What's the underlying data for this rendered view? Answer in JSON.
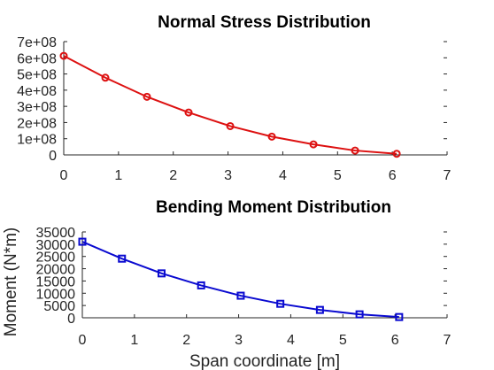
{
  "chart_data": [
    {
      "type": "line",
      "title": "Normal Stress Distribution",
      "xlabel": "",
      "ylabel": "",
      "xlim": [
        0,
        7
      ],
      "ylim": [
        0,
        700000000
      ],
      "xticks": [
        0,
        1,
        2,
        3,
        4,
        5,
        6,
        7
      ],
      "xtick_labels": [
        "0",
        "1",
        "2",
        "3",
        "4",
        "5",
        "6",
        "7"
      ],
      "yticks": [
        0,
        100000000,
        200000000,
        300000000,
        400000000,
        500000000,
        600000000,
        700000000
      ],
      "ytick_labels": [
        "0",
        "1e+08",
        "2e+08",
        "3e+08",
        "4e+08",
        "5e+08",
        "6e+08",
        "7e+08"
      ],
      "grid": false,
      "series": [
        {
          "marker": "circle",
          "color": "#dd1111",
          "x": [
            0,
            0.76,
            1.52,
            2.28,
            3.04,
            3.8,
            4.56,
            5.32,
            6.08
          ],
          "y": [
            612000000,
            477000000,
            359000000,
            262000000,
            178000000,
            113000000,
            65000000,
            27000000,
            7000000
          ]
        }
      ]
    },
    {
      "type": "line",
      "title": "Bending Moment Distribution",
      "xlabel": "Span coordinate [m]",
      "ylabel": "Moment (N*m)",
      "xlim": [
        0,
        7
      ],
      "ylim": [
        0,
        35000
      ],
      "xticks": [
        0,
        1,
        2,
        3,
        4,
        5,
        6,
        7
      ],
      "xtick_labels": [
        "0",
        "1",
        "2",
        "3",
        "4",
        "5",
        "6",
        "7"
      ],
      "yticks": [
        0,
        5000,
        10000,
        15000,
        20000,
        25000,
        30000,
        35000
      ],
      "ytick_labels": [
        "0",
        "5000",
        "10000",
        "15000",
        "20000",
        "25000",
        "30000",
        "35000"
      ],
      "grid": false,
      "series": [
        {
          "marker": "square",
          "color": "#0a0ad0",
          "x": [
            0,
            0.76,
            1.52,
            2.28,
            3.04,
            3.8,
            4.56,
            5.32,
            6.08
          ],
          "y": [
            31000,
            24100,
            18100,
            13200,
            9000,
            5700,
            3200,
            1400,
            300
          ]
        }
      ]
    }
  ]
}
